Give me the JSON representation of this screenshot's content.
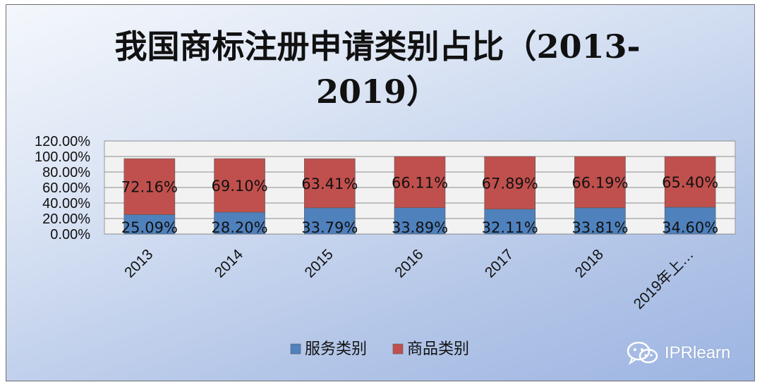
{
  "chart_data": {
    "type": "bar",
    "stacked": true,
    "title": "我国商标注册申请类别占比（2013-2019）",
    "categories": [
      "2013",
      "2014",
      "2015",
      "2016",
      "2017",
      "2018",
      "2019年上…"
    ],
    "series": [
      {
        "name": "服务类别",
        "color": "#4f81bd",
        "values": [
          25.09,
          28.2,
          33.79,
          33.89,
          32.11,
          33.81,
          34.6
        ],
        "labels": [
          "25.09%",
          "28.20%",
          "33.79%",
          "33.89%",
          "32.11%",
          "33.81%",
          "34.60%"
        ]
      },
      {
        "name": "商品类别",
        "color": "#c0504d",
        "values": [
          72.16,
          69.1,
          63.41,
          66.11,
          67.89,
          66.19,
          65.4
        ],
        "labels": [
          "72.16%",
          "69.10%",
          "63.41%",
          "66.11%",
          "67.89%",
          "66.19%",
          "65.40%"
        ]
      }
    ],
    "yticks": [
      "0.00%",
      "20.00%",
      "40.00%",
      "60.00%",
      "80.00%",
      "100.00%",
      "120.00%"
    ],
    "ylim": [
      0,
      120
    ],
    "grid": true,
    "legend": "bottom"
  },
  "watermark": {
    "text": "IPRlearn",
    "icon": "wechat-icon"
  }
}
